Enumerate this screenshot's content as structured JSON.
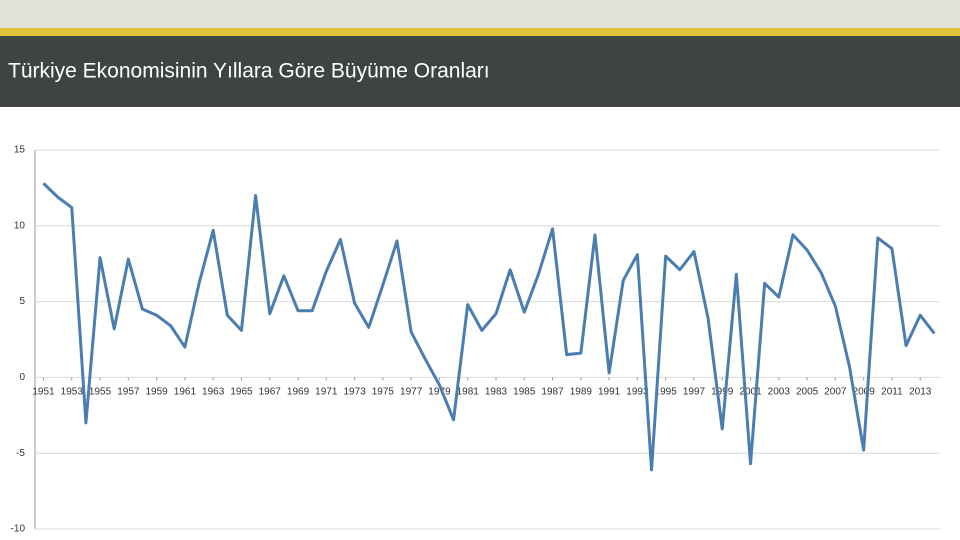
{
  "chart_data": {
    "type": "line",
    "title": "Türkiye Ekonomisinin Yıllara Göre Büyüme Oranları",
    "x": [
      1951,
      1952,
      1953,
      1954,
      1955,
      1956,
      1957,
      1958,
      1959,
      1960,
      1961,
      1962,
      1963,
      1964,
      1965,
      1966,
      1967,
      1968,
      1969,
      1970,
      1971,
      1972,
      1973,
      1974,
      1975,
      1976,
      1977,
      1978,
      1979,
      1980,
      1981,
      1982,
      1983,
      1984,
      1985,
      1986,
      1987,
      1988,
      1989,
      1990,
      1991,
      1992,
      1993,
      1994,
      1995,
      1996,
      1997,
      1998,
      1999,
      2000,
      2001,
      2002,
      2003,
      2004,
      2005,
      2006,
      2007,
      2008,
      2009,
      2010,
      2011,
      2012,
      2013,
      2014
    ],
    "values": [
      12.8,
      11.9,
      11.2,
      -3.0,
      7.9,
      3.2,
      7.8,
      4.5,
      4.1,
      3.4,
      2.0,
      6.2,
      9.7,
      4.1,
      3.1,
      12.0,
      4.2,
      6.7,
      4.4,
      4.4,
      7.0,
      9.1,
      4.9,
      3.3,
      6.1,
      9.0,
      3.0,
      1.2,
      -0.5,
      -2.8,
      4.8,
      3.1,
      4.2,
      7.1,
      4.3,
      6.8,
      9.8,
      1.5,
      1.6,
      9.4,
      0.3,
      6.4,
      8.1,
      -6.1,
      8.0,
      7.1,
      8.3,
      3.9,
      -3.4,
      6.8,
      -5.7,
      6.2,
      5.3,
      9.4,
      8.4,
      6.9,
      4.7,
      0.7,
      -4.8,
      9.2,
      8.5,
      2.1,
      4.1,
      2.9
    ],
    "color": "#4a7eb0",
    "xlim": [
      1950.4,
      2014.4
    ],
    "xticks": [
      1951,
      1953,
      1955,
      1957,
      1959,
      1961,
      1963,
      1965,
      1967,
      1969,
      1971,
      1973,
      1975,
      1977,
      1979,
      1981,
      1983,
      1985,
      1987,
      1989,
      1991,
      1993,
      1995,
      1997,
      1999,
      2001,
      2003,
      2005,
      2007,
      2009,
      2011,
      2013
    ],
    "ylim": [
      -10,
      15
    ],
    "yticks": [
      -10,
      -5,
      0,
      5,
      10,
      15
    ],
    "grid": true
  }
}
